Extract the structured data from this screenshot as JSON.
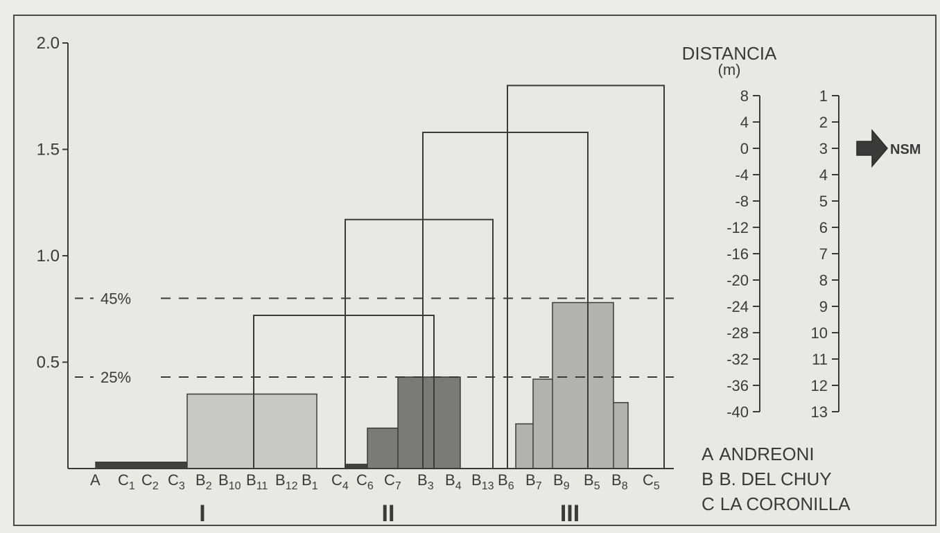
{
  "chart_data": {
    "type": "dendrogram",
    "title": "",
    "ylabel": "",
    "ylim": [
      0,
      2.0
    ],
    "y_ticks": [
      "2.0",
      "1.5",
      "1.0",
      "0.5"
    ],
    "y_tick_values": [
      2.0,
      1.5,
      1.0,
      0.5
    ],
    "thresholds": [
      {
        "label": "45%",
        "value": 0.8
      },
      {
        "label": "25%",
        "value": 0.43
      }
    ],
    "leaves": [
      {
        "code": "A",
        "sub": ""
      },
      {
        "code": "C",
        "sub": "1"
      },
      {
        "code": "C",
        "sub": "2"
      },
      {
        "code": "C",
        "sub": "3"
      },
      {
        "code": "B",
        "sub": "2"
      },
      {
        "code": "B",
        "sub": "10"
      },
      {
        "code": "B",
        "sub": "11"
      },
      {
        "code": "B",
        "sub": "12"
      },
      {
        "code": "B",
        "sub": "1"
      },
      {
        "code": "C",
        "sub": "4"
      },
      {
        "code": "C",
        "sub": "6"
      },
      {
        "code": "C",
        "sub": "7"
      },
      {
        "code": "B",
        "sub": "3"
      },
      {
        "code": "B",
        "sub": "4"
      },
      {
        "code": "B",
        "sub": "13"
      },
      {
        "code": "B",
        "sub": "6"
      },
      {
        "code": "B",
        "sub": "7"
      },
      {
        "code": "B",
        "sub": "9"
      },
      {
        "code": "B",
        "sub": "5"
      },
      {
        "code": "B",
        "sub": "8"
      },
      {
        "code": "C",
        "sub": "5"
      }
    ],
    "merges": [
      {
        "id": "m1",
        "children": [
          "A",
          "C1",
          "C2",
          "C3",
          "B2",
          "B10",
          "B11",
          "B12"
        ],
        "height": 0.03,
        "group": "I"
      },
      {
        "id": "m2",
        "children": [
          "m1",
          "B1"
        ],
        "height": 0.35,
        "group": "I"
      },
      {
        "id": "m3",
        "children": [
          "C4",
          "C6"
        ],
        "height": 0.02,
        "group": "II"
      },
      {
        "id": "m4",
        "children": [
          "m3",
          "C7"
        ],
        "height": 0.19,
        "group": "II"
      },
      {
        "id": "m5",
        "children": [
          "m4",
          "B3",
          "B4"
        ],
        "height": 0.43,
        "group": "II"
      },
      {
        "id": "m6",
        "children": [
          "m2",
          "m5"
        ],
        "height": 0.72
      },
      {
        "id": "m7",
        "children": [
          "m6",
          "B13"
        ],
        "height": 1.17
      },
      {
        "id": "m8",
        "children": [
          "B6",
          "B7"
        ],
        "height": 0.21,
        "group": "III"
      },
      {
        "id": "m9",
        "children": [
          "m8",
          "B9"
        ],
        "height": 0.42,
        "group": "III"
      },
      {
        "id": "m10",
        "children": [
          "B5",
          "B8"
        ],
        "height": 0.31,
        "group": "III"
      },
      {
        "id": "m11",
        "children": [
          "m9",
          "m10"
        ],
        "height": 0.78,
        "group": "III"
      },
      {
        "id": "m12",
        "children": [
          "m7",
          "m11"
        ],
        "height": 1.58
      },
      {
        "id": "m13",
        "children": [
          "m12",
          "C5"
        ],
        "height": 1.8
      }
    ],
    "groups": [
      "I",
      "II",
      "III"
    ],
    "colors": {
      "group_I": "#c9c9c4",
      "group_II": "#7a7a76",
      "group_III": "#b3b3ae",
      "tight_cluster": "#3f3f3c",
      "lines": "#3a3a38",
      "background": "#ecebe6",
      "plot_background": "#e9e8e3"
    }
  },
  "depth_scale": {
    "title_line1": "DISTANCIA",
    "title_line2": "(m)",
    "depth_labels": [
      "8",
      "4",
      "0",
      "-4",
      "-8",
      "-12",
      "-16",
      "-20",
      "-24",
      "-28",
      "-32",
      "-36",
      "-40"
    ],
    "station_labels": [
      "1",
      "2",
      "3",
      "4",
      "5",
      "6",
      "7",
      "8",
      "9",
      "10",
      "11",
      "12",
      "13"
    ],
    "marker_label": "NSM",
    "marker_station": 3
  },
  "legend": [
    {
      "key": "A",
      "name": "ANDREONI"
    },
    {
      "key": "B",
      "name": "B. DEL CHUY"
    },
    {
      "key": "C",
      "name": "LA CORONILLA"
    }
  ]
}
